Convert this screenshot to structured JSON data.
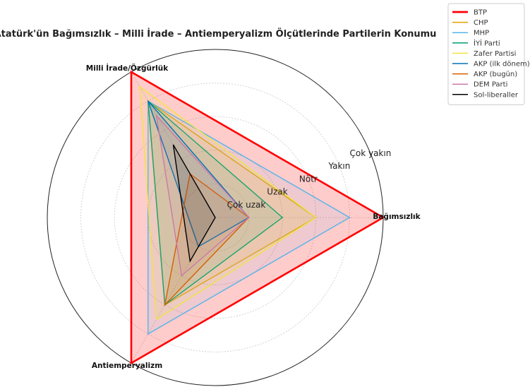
{
  "chart_data": {
    "type": "radar",
    "title": "Atatürk'ün Bağımsızlık – Milli İrade – Antiemperyalizm Ölçütlerinde Partilerin Konumu",
    "axes": [
      "Bağımsızlık",
      "Milli İrade/Özgürlük",
      "Antiemperyalizm"
    ],
    "rlim": [
      0,
      5
    ],
    "ring_labels": [
      {
        "value": 1,
        "label": "Çok uzak"
      },
      {
        "value": 2,
        "label": "Uzak"
      },
      {
        "value": 3,
        "label": "Nötr"
      },
      {
        "value": 4,
        "label": "Yakın"
      },
      {
        "value": 5,
        "label": "Çok yakın"
      }
    ],
    "grid": true,
    "legend_position": "top-right",
    "series": [
      {
        "name": "BTP",
        "color": "#ff0000",
        "values": [
          5,
          5,
          5
        ],
        "fill": true
      },
      {
        "name": "CHP",
        "color": "#e69f00",
        "values": [
          3,
          4,
          3
        ]
      },
      {
        "name": "MHP",
        "color": "#56b4e9",
        "values": [
          4,
          4,
          4
        ]
      },
      {
        "name": "İYİ Parti",
        "color": "#009e73",
        "values": [
          2,
          4,
          3
        ]
      },
      {
        "name": "Zafer Partisi",
        "color": "#f0e442",
        "values": [
          3,
          4.5,
          3.5
        ]
      },
      {
        "name": "AKP (ilk dönem)",
        "color": "#0072b2",
        "values": [
          1,
          4,
          1
        ]
      },
      {
        "name": "AKP (bugün)",
        "color": "#d55e00",
        "values": [
          1,
          1.5,
          3
        ]
      },
      {
        "name": "DEM Parti",
        "color": "#cc79a7",
        "values": [
          1,
          3.5,
          2
        ]
      },
      {
        "name": "Sol-liberaller",
        "color": "#000000",
        "values": [
          0,
          2.5,
          1.5
        ]
      }
    ]
  }
}
